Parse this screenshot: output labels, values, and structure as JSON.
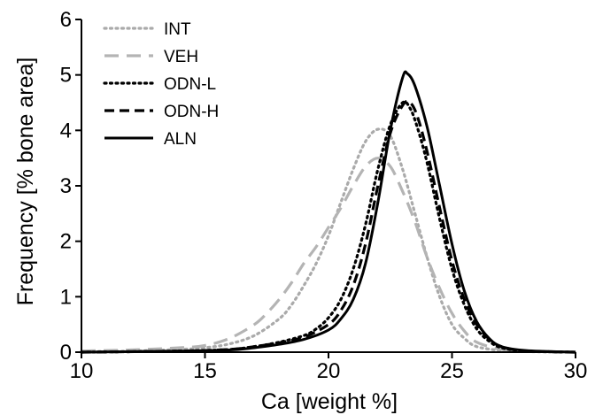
{
  "chart_data": {
    "type": "line",
    "xlabel": "Ca [weight %]",
    "ylabel": "Frequency [% bone area]",
    "xlim": [
      10,
      30
    ],
    "ylim": [
      0,
      6
    ],
    "xticks": [
      10,
      15,
      20,
      25,
      30
    ],
    "yticks": [
      0,
      1,
      2,
      3,
      4,
      5,
      6
    ],
    "grid": false,
    "legend_position": "top-left",
    "series": [
      {
        "name": "INT",
        "style": "dotted",
        "color": "#aaaaaa",
        "x": [
          10,
          12,
          14,
          15,
          16,
          17,
          18,
          18.5,
          19,
          19.5,
          20,
          20.5,
          21,
          21.5,
          22,
          22.5,
          23,
          23.5,
          24,
          24.5,
          25,
          25.5,
          26,
          27,
          28,
          30
        ],
        "y": [
          0.01,
          0.02,
          0.05,
          0.08,
          0.15,
          0.3,
          0.6,
          0.85,
          1.2,
          1.6,
          2.1,
          2.7,
          3.3,
          3.8,
          4.02,
          3.9,
          3.3,
          2.5,
          1.7,
          1.0,
          0.5,
          0.25,
          0.1,
          0.03,
          0.01,
          0.0
        ]
      },
      {
        "name": "VEH",
        "style": "dashed",
        "color": "#b4b4b4",
        "x": [
          10,
          12,
          14,
          15,
          16,
          17,
          17.5,
          18,
          18.5,
          19,
          19.5,
          20,
          20.5,
          21,
          21.5,
          22,
          22.5,
          23,
          23.5,
          24,
          24.5,
          25,
          25.5,
          26,
          27,
          28,
          30
        ],
        "y": [
          0.02,
          0.04,
          0.08,
          0.12,
          0.25,
          0.5,
          0.7,
          0.95,
          1.25,
          1.6,
          1.9,
          2.25,
          2.6,
          3.0,
          3.35,
          3.5,
          3.35,
          2.9,
          2.35,
          1.7,
          1.15,
          0.7,
          0.38,
          0.18,
          0.05,
          0.02,
          0.0
        ]
      },
      {
        "name": "ODN-L",
        "style": "dotted",
        "color": "#000000",
        "x": [
          10,
          14,
          16,
          17,
          18,
          19,
          19.5,
          20,
          20.5,
          21,
          21.5,
          22,
          22.5,
          23,
          23.3,
          23.6,
          24,
          24.5,
          25,
          25.5,
          26,
          26.5,
          27,
          28,
          30
        ],
        "y": [
          0.0,
          0.02,
          0.05,
          0.1,
          0.18,
          0.3,
          0.42,
          0.62,
          0.95,
          1.5,
          2.3,
          3.3,
          4.1,
          4.5,
          4.4,
          4.05,
          3.4,
          2.4,
          1.5,
          0.85,
          0.42,
          0.2,
          0.08,
          0.02,
          0.0
        ]
      },
      {
        "name": "ODN-H",
        "style": "dashed",
        "color": "#000000",
        "x": [
          10,
          14,
          16,
          17,
          18,
          19,
          20,
          20.5,
          21,
          21.5,
          22,
          22.5,
          23,
          23.3,
          23.6,
          24,
          24.5,
          25,
          25.5,
          26,
          26.5,
          27,
          28,
          30
        ],
        "y": [
          0.0,
          0.02,
          0.05,
          0.1,
          0.17,
          0.27,
          0.5,
          0.75,
          1.2,
          1.95,
          3.0,
          3.95,
          4.45,
          4.5,
          4.25,
          3.6,
          2.6,
          1.65,
          0.95,
          0.5,
          0.24,
          0.1,
          0.02,
          0.0
        ]
      },
      {
        "name": "ALN",
        "style": "solid",
        "color": "#000000",
        "x": [
          10,
          14,
          16,
          17,
          18,
          19,
          20,
          20.5,
          21,
          21.5,
          22,
          22.5,
          23,
          23.2,
          23.5,
          24,
          24.5,
          25,
          25.5,
          26,
          26.5,
          27,
          28,
          30
        ],
        "y": [
          0.0,
          0.02,
          0.04,
          0.08,
          0.14,
          0.23,
          0.4,
          0.6,
          0.95,
          1.6,
          2.7,
          4.0,
          4.95,
          5.02,
          4.8,
          4.05,
          3.0,
          1.95,
          1.1,
          0.55,
          0.25,
          0.1,
          0.03,
          0.0
        ]
      }
    ]
  }
}
